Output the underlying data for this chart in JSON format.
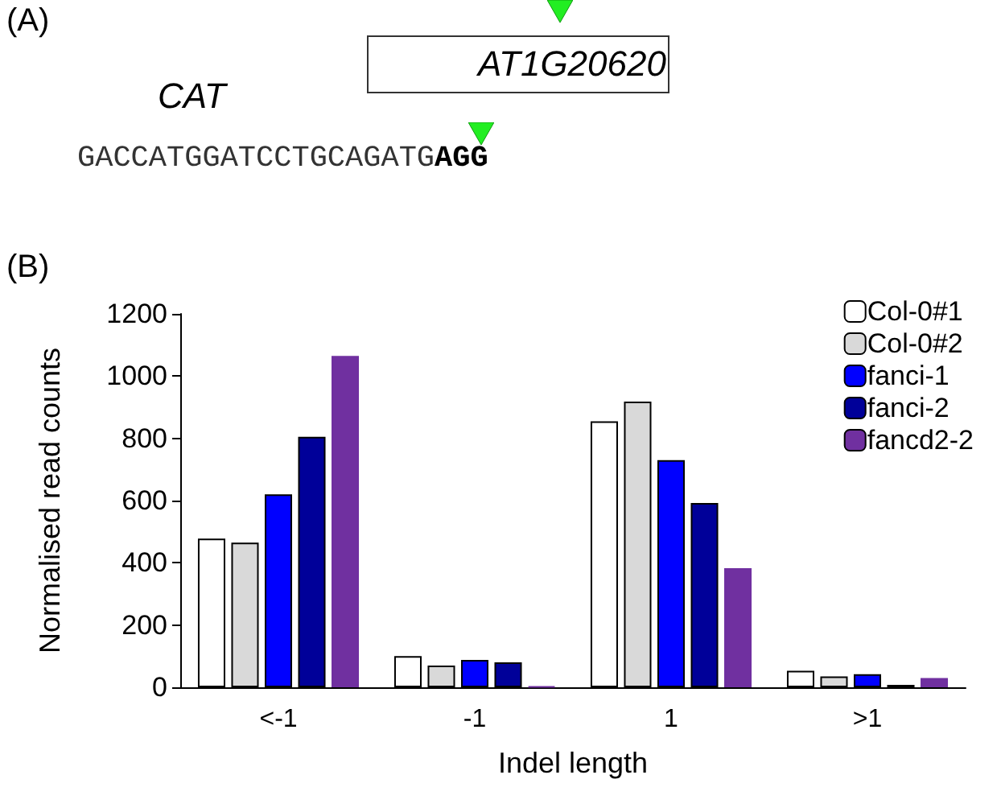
{
  "chart_data": {
    "type": "bar",
    "annotations": [
      "(A)",
      "AT1G20620",
      "CAT",
      "GACCATGGATCCTGCAGATG",
      "AGG",
      "(B)"
    ],
    "xlabel": "Indel length",
    "ylabel": "Normalised read counts",
    "categories": [
      "<-1",
      "-1",
      "1",
      ">1"
    ],
    "series": [
      {
        "name": "Col-0#1",
        "color": "#ffffff",
        "values": [
          478,
          100,
          855,
          53
        ]
      },
      {
        "name": "Col-0#2",
        "color": "#d9d9d9",
        "values": [
          465,
          70,
          918,
          35
        ]
      },
      {
        "name": "fanci-1",
        "color": "#0000ff",
        "values": [
          620,
          88,
          730,
          42
        ]
      },
      {
        "name": "fanci-2",
        "color": "#000099",
        "values": [
          805,
          80,
          592,
          8
        ]
      },
      {
        "name": "fancd2-2",
        "color": "#7030a0",
        "values": [
          1065,
          3,
          383,
          30
        ]
      }
    ],
    "ylim": [
      0,
      1200
    ],
    "yticks": [
      0,
      200,
      400,
      600,
      800,
      1000,
      1200
    ],
    "grid": false,
    "legend": "top right"
  }
}
